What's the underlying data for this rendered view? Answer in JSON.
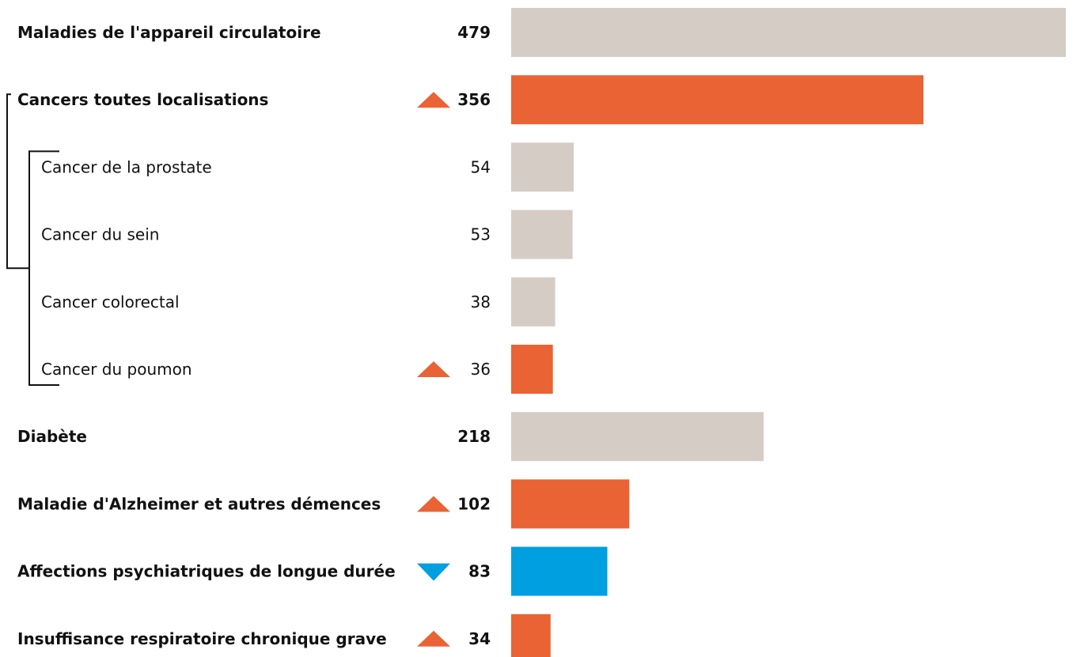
{
  "chart_data": {
    "type": "bar",
    "orientation": "horizontal",
    "xlim": [
      0,
      479
    ],
    "grid": false,
    "legend": "none",
    "colors": {
      "neutral": "#d5ccc6",
      "increase": "#e96335",
      "decrease": "#009fe0",
      "bracket": "#111111"
    },
    "categories": [
      "Maladies de l'appareil circulatoire",
      "Cancers toutes localisations",
      "Cancer de la prostate",
      "Cancer du sein",
      "Cancer colorectal",
      "Cancer du poumon",
      "Diabète",
      "Maladie d'Alzheimer et autres démences",
      "Affections psychiatriques de longue durée",
      "Insuffisance respiratoire chronique grave"
    ],
    "values": [
      479,
      356,
      54,
      53,
      38,
      36,
      218,
      102,
      83,
      34
    ],
    "value_labels": [
      "479",
      "356",
      "54",
      "53",
      "38",
      "36",
      "218",
      "102",
      "83",
      "34"
    ],
    "bold": [
      true,
      true,
      false,
      false,
      false,
      false,
      true,
      true,
      true,
      true
    ],
    "trend": [
      "none",
      "up",
      "none",
      "none",
      "none",
      "up",
      "none",
      "up",
      "down",
      "up"
    ],
    "group": {
      "parent_index": 1,
      "children_indices": [
        2,
        3,
        4,
        5
      ]
    }
  }
}
